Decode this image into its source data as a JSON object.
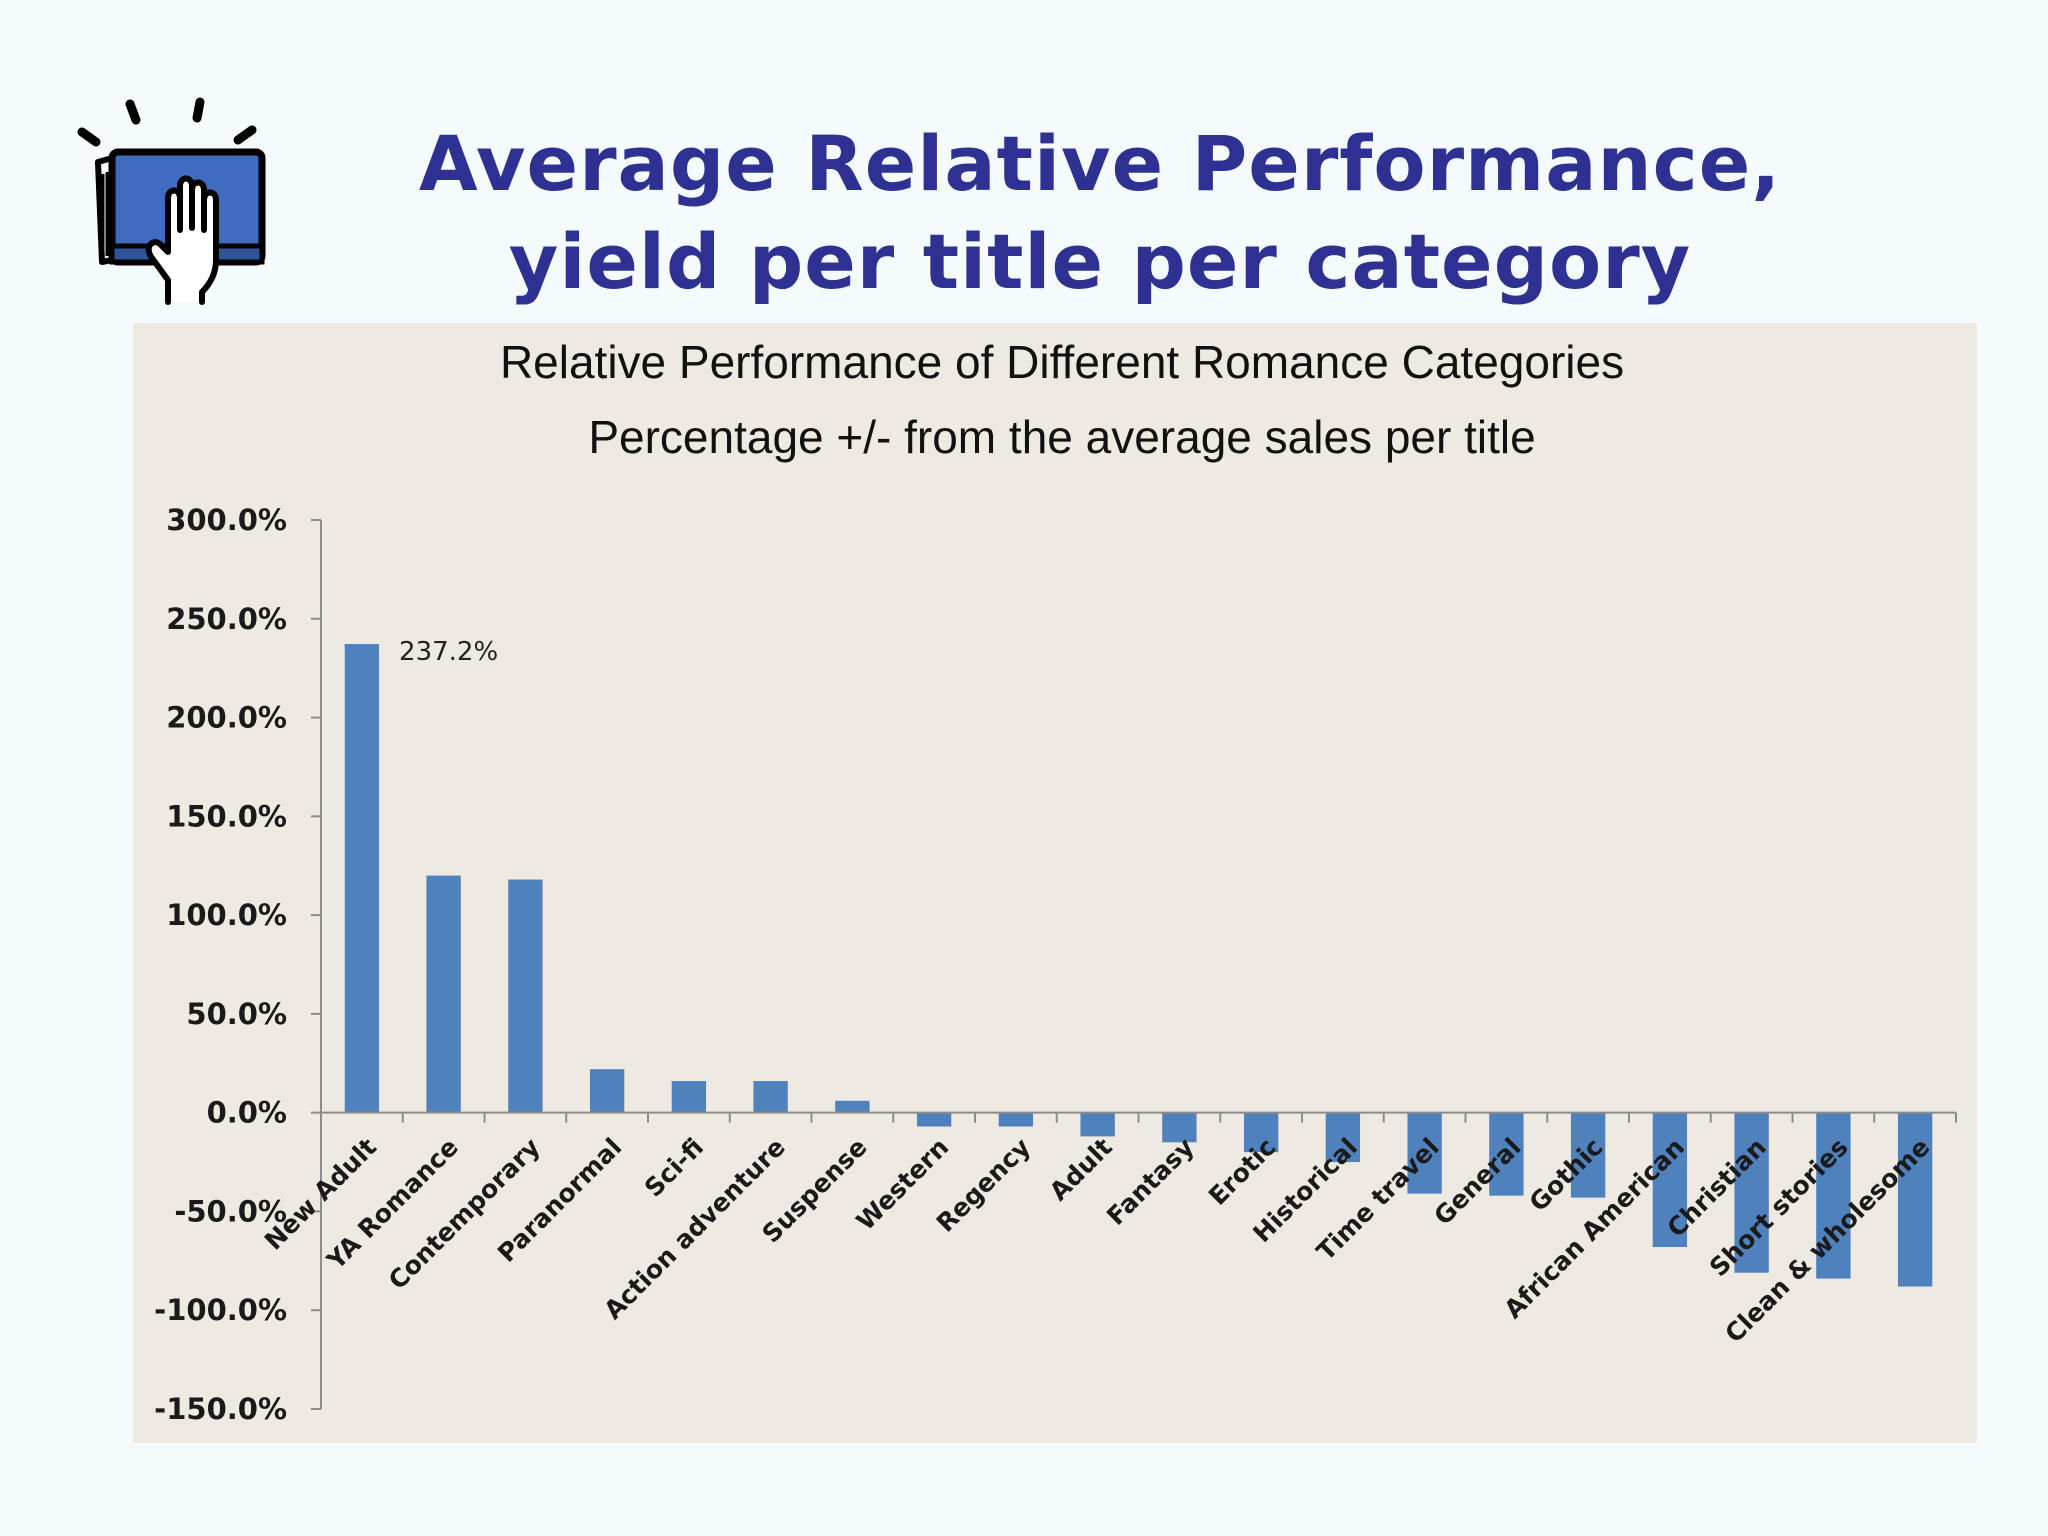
{
  "slide": {
    "title_line1": "Average Relative Performance,",
    "title_line2": "yield per title per category",
    "icon": "book-hand-icon"
  },
  "chart_data": {
    "type": "bar",
    "title": "Relative Performance of Different Romance Categories",
    "subtitle": "Percentage +/- from the average sales per title",
    "xlabel": "",
    "ylabel": "",
    "ylim": [
      -150,
      300
    ],
    "yticks": [
      300,
      250,
      200,
      150,
      100,
      50,
      0,
      -50,
      -100,
      -150
    ],
    "ytick_labels": [
      "300.0%",
      "250.0%",
      "200.0%",
      "150.0%",
      "100.0%",
      "50.0%",
      "0.0%",
      "-50.0%",
      "-100.0%",
      "-150.0%"
    ],
    "grid": false,
    "legend": "none",
    "bar_color": "#4f81bd",
    "categories": [
      "New Adult",
      "YA Romance",
      "Contemporary",
      "Paranormal",
      "Sci-fi",
      "Action adventure",
      "Suspense",
      "Western",
      "Regency",
      "Adult",
      "Fantasy",
      "Erotic",
      "Historical",
      "Time travel",
      "General",
      "Gothic",
      "African American",
      "Christian",
      "Short stories",
      "Clean & wholesome"
    ],
    "values": [
      237.2,
      120,
      118,
      22,
      16,
      16,
      6,
      -7,
      -7,
      -12,
      -15,
      -20,
      -25,
      -41,
      -42,
      -43,
      -68,
      -81,
      -84,
      -88
    ],
    "data_labels": [
      {
        "index": 0,
        "text": "237.2%"
      }
    ]
  }
}
